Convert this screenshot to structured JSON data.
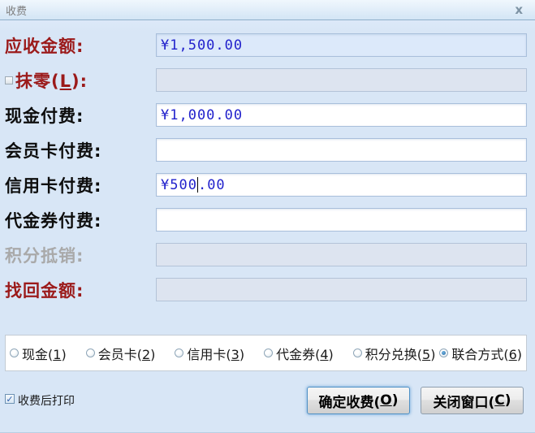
{
  "window": {
    "title": "收费"
  },
  "icons": {
    "close": "x",
    "check": "✓"
  },
  "form": {
    "rows": [
      {
        "label": "应收金额:",
        "value": "¥1,500.00"
      },
      {
        "label_prefix": "抹零(",
        "label_key": "L",
        "label_suffix": "):",
        "value": ""
      },
      {
        "label": "现金付费:",
        "value": "¥1,000.00"
      },
      {
        "label": "会员卡付费:",
        "value": ""
      },
      {
        "label": "信用卡付费:",
        "value_before_caret": "¥500",
        "value_after_caret": ".00"
      },
      {
        "label": "代金券付费:",
        "value": ""
      },
      {
        "label": "积分抵销:",
        "value": ""
      },
      {
        "label": "找回金额:",
        "value": ""
      }
    ]
  },
  "payment_modes": [
    {
      "prefix": "现金(",
      "key": "1",
      "suffix": ")",
      "selected": false
    },
    {
      "prefix": "会员卡(",
      "key": "2",
      "suffix": ")",
      "selected": false
    },
    {
      "prefix": "信用卡(",
      "key": "3",
      "suffix": ")",
      "selected": false
    },
    {
      "prefix": "代金券(",
      "key": "4",
      "suffix": ")",
      "selected": false
    },
    {
      "prefix": "积分兑换(",
      "key": "5",
      "suffix": ")",
      "selected": false
    },
    {
      "prefix": "联合方式(",
      "key": "6",
      "suffix": ")",
      "selected": true
    }
  ],
  "footer": {
    "print_label": "收费后打印",
    "print_checked": true,
    "confirm_prefix": "确定收费(",
    "confirm_key": "O",
    "confirm_suffix": ")",
    "close_prefix": "关闭窗口(",
    "close_key": "C",
    "close_suffix": ")"
  },
  "colors": {
    "dialog_background": "#dae7f7",
    "label_red": "#9b1a1a",
    "label_grey": "#a9a9a9",
    "value_blue": "#2222cc",
    "selected_radio_dot": "#2e6fa8"
  }
}
